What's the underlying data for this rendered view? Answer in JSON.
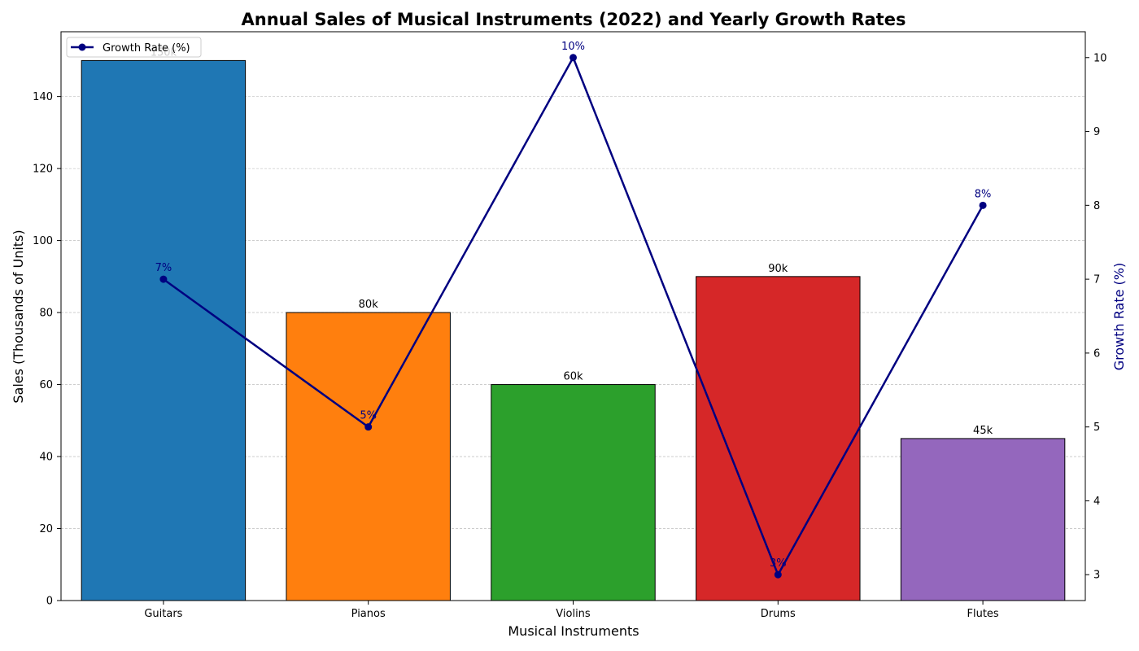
{
  "chart_data": {
    "type": "bar",
    "title": "Annual Sales of Musical Instruments (2022) and Yearly Growth Rates",
    "xlabel": "Musical Instruments",
    "ylabel": "Sales (Thousands of Units)",
    "y2label": "Growth Rate (%)",
    "categories": [
      "Guitars",
      "Pianos",
      "Violins",
      "Drums",
      "Flutes"
    ],
    "series": [
      {
        "type": "bar",
        "axis": "left",
        "values": [
          150,
          80,
          60,
          90,
          45
        ],
        "labels": [
          "150k",
          "80k",
          "60k",
          "90k",
          "45k"
        ],
        "colors": [
          "#1f77b4",
          "#ff7f0e",
          "#2ca02c",
          "#d62728",
          "#9467bd"
        ]
      },
      {
        "type": "line",
        "axis": "right",
        "name": "Growth Rate (%)",
        "values": [
          7,
          5,
          10,
          3,
          8
        ],
        "labels": [
          "7%",
          "5%",
          "10%",
          "3%",
          "8%"
        ],
        "color": "#000080"
      }
    ],
    "ylim": [
      0,
      158
    ],
    "yticks": [
      0,
      20,
      40,
      60,
      80,
      100,
      120,
      140
    ],
    "y2lim": [
      2.65,
      10.35
    ],
    "y2ticks": [
      3,
      4,
      5,
      6,
      7,
      8,
      9,
      10
    ],
    "grid": "horizontal-dashed",
    "legend_position": "top-left"
  }
}
